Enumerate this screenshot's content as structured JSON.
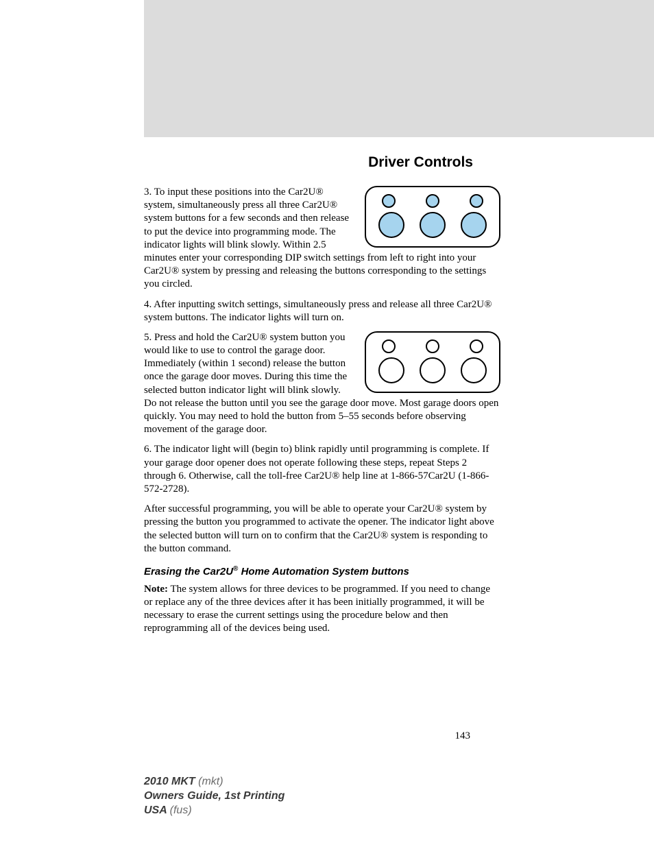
{
  "header": {
    "title": "Driver Controls"
  },
  "diagrams": {
    "remote1": {
      "border_color": "#000000",
      "border_radius": 18,
      "border_width": 2,
      "bg": "#ffffff",
      "small_circle": {
        "diameter": 20,
        "stroke": "#000000",
        "fill": "#a6d4ee"
      },
      "big_circle": {
        "diameter": 38,
        "stroke": "#000000",
        "fill": "#a6d4ee"
      },
      "count_small": 3,
      "count_big": 3
    },
    "remote2": {
      "border_color": "#000000",
      "border_radius": 18,
      "border_width": 2,
      "bg": "#ffffff",
      "small_circle": {
        "diameter": 20,
        "stroke": "#000000",
        "fill": "none"
      },
      "big_circle": {
        "diameter": 38,
        "stroke": "#000000",
        "fill": "none"
      },
      "count_small": 3,
      "count_big": 3
    }
  },
  "body": {
    "p3": "3. To input these positions into the Car2U® system, simultaneously press all three Car2U® system buttons for a few seconds and then release to put the device into programming mode. The indicator lights will blink slowly. Within 2.5 minutes enter your corresponding DIP switch settings from left to right into your Car2U® system by pressing and releasing the buttons corresponding to the settings you circled.",
    "p4": "4. After inputting switch settings, simultaneously press and release all three Car2U® system buttons. The indicator lights will turn on.",
    "p5": "5. Press and hold the Car2U® system button you would like to use to control the garage door. Immediately (within 1 second) release the button once the garage door moves. During this time the selected button indicator light will blink slowly. Do not release the button until you see the garage door move. Most garage doors open quickly. You may need to hold the button from 5–55 seconds before observing movement of the garage door.",
    "p6": "6. The indicator light will (begin to) blink rapidly until programming is complete. If your garage door opener does not operate following these steps, repeat Steps 2 through 6. Otherwise, call the toll-free Car2U® help line at 1-866-57Car2U (1-866-572-2728).",
    "p7": "After successful programming, you will be able to operate your Car2U® system by pressing the button you programmed to activate the opener. The indicator light above the selected button will turn on to confirm that the Car2U® system is responding to the button command.",
    "sub_prefix": "Erasing the Car2U",
    "sub_reg": "®",
    "sub_suffix": " Home Automation System buttons",
    "note_label": "Note:",
    "note_body": " The system allows for three devices to be programmed. If you need to change or replace any of the three devices after it has been initially programmed, it will be necessary to erase the current settings using the procedure below and then reprogramming all of the devices being used."
  },
  "page_number": "143",
  "footer": {
    "l1_dark": "2010 MKT ",
    "l1_light": "(mkt)",
    "l2": "Owners Guide, 1st Printing",
    "l3_dark": "USA ",
    "l3_light": "(fus)"
  }
}
